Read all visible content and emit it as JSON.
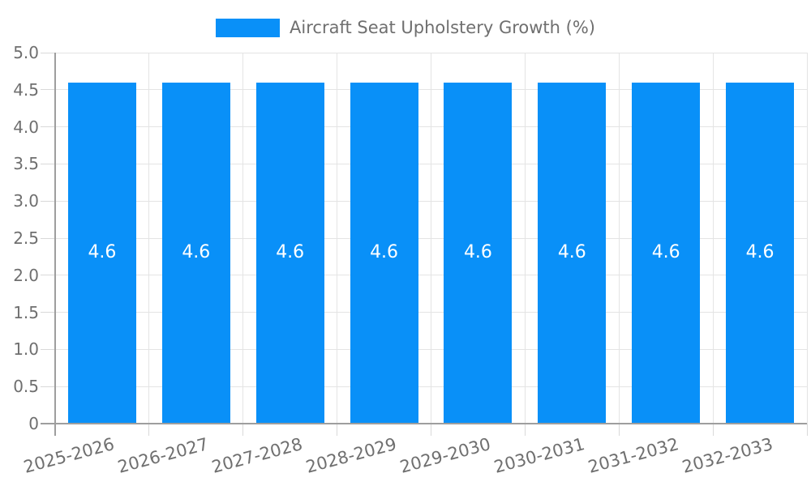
{
  "chart_data": {
    "type": "bar",
    "title": "",
    "xlabel": "",
    "ylabel": "",
    "legend": {
      "position": "top-center",
      "label": "Aircraft Seat Upholstery Growth (%)"
    },
    "categories": [
      "2025-2026",
      "2026-2027",
      "2027-2028",
      "2028-2029",
      "2029-2030",
      "2030-2031",
      "2031-2032",
      "2032-2033"
    ],
    "values": [
      4.6,
      4.6,
      4.6,
      4.6,
      4.6,
      4.6,
      4.6,
      4.6
    ],
    "bar_labels": [
      "4.6",
      "4.6",
      "4.6",
      "4.6",
      "4.6",
      "4.6",
      "4.6",
      "4.6"
    ],
    "ylim": [
      0,
      5
    ],
    "ytick_step": 0.5,
    "ytick_labels": [
      "0",
      "0.5",
      "1.0",
      "1.5",
      "2.0",
      "2.5",
      "3.0",
      "3.5",
      "4.0",
      "4.5",
      "5.0"
    ],
    "grid": true,
    "colors": {
      "bar": "#0990F8",
      "bar_label": "#ffffff",
      "grid": "#e4e4e4",
      "tick": "#d9d9d9",
      "axis": "#9e9e9e",
      "text": "#6f6f6f"
    }
  }
}
